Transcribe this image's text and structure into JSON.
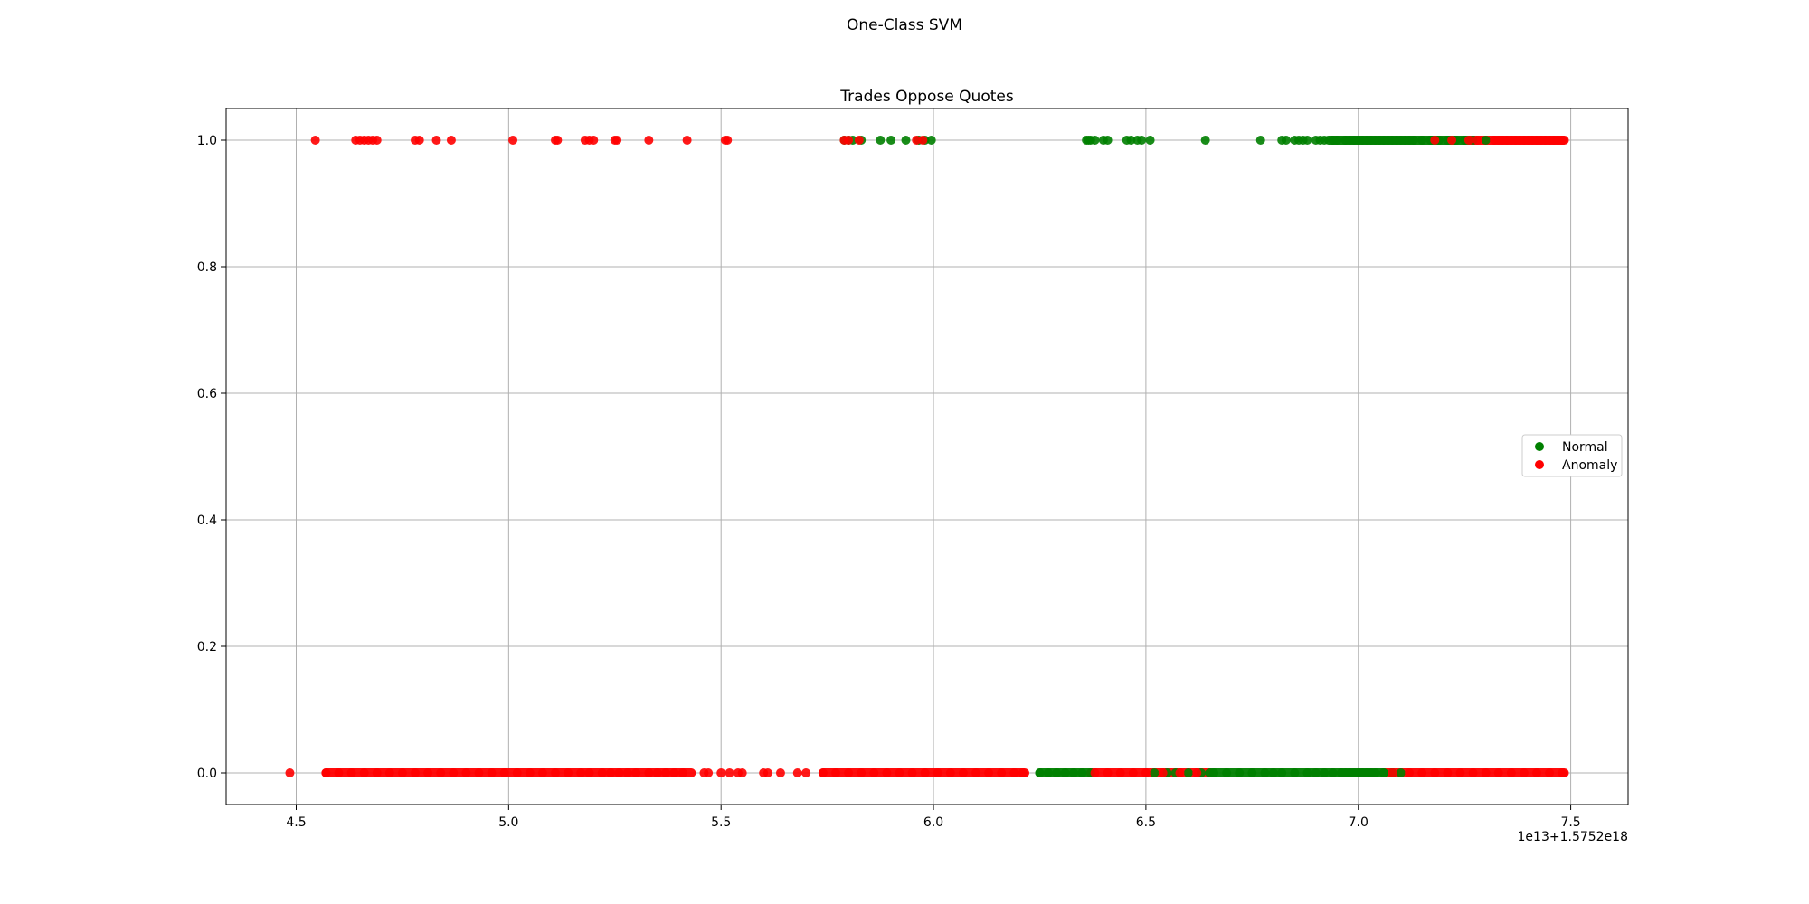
{
  "figure": {
    "suptitle": "One-Class SVM"
  },
  "chart_data": {
    "type": "scatter",
    "title": "Trades Oppose Quotes",
    "xlabel": "",
    "ylabel": "",
    "x_offset_label": "1e13+1.5752e18",
    "xlim": [
      4.335,
      7.635
    ],
    "ylim": [
      -0.05,
      1.05
    ],
    "x_ticks": [
      4.5,
      5.0,
      5.5,
      6.0,
      6.5,
      7.0,
      7.5
    ],
    "x_tick_labels": [
      "4.5",
      "5.0",
      "5.5",
      "6.0",
      "6.5",
      "7.0",
      "7.5"
    ],
    "y_ticks": [
      0.0,
      0.2,
      0.4,
      0.6,
      0.8,
      1.0
    ],
    "y_tick_labels": [
      "0.0",
      "0.2",
      "0.4",
      "0.6",
      "0.8",
      "1.0"
    ],
    "grid": true,
    "legend": {
      "placement": "center-right"
    },
    "series": [
      {
        "name": "Normal",
        "color": "#008000",
        "points": [
          [
            5.79,
            1
          ],
          [
            5.8,
            1
          ],
          [
            5.81,
            1
          ],
          [
            5.83,
            1
          ],
          [
            5.875,
            1
          ],
          [
            5.9,
            1
          ],
          [
            5.935,
            1
          ],
          [
            5.965,
            1
          ],
          [
            5.98,
            1
          ],
          [
            5.995,
            1
          ],
          [
            6.36,
            1
          ],
          [
            6.365,
            1
          ],
          [
            6.37,
            1
          ],
          [
            6.38,
            1
          ],
          [
            6.4,
            1
          ],
          [
            6.41,
            1
          ],
          [
            6.455,
            1
          ],
          [
            6.465,
            1
          ],
          [
            6.48,
            1
          ],
          [
            6.49,
            1
          ],
          [
            6.51,
            1
          ],
          [
            6.64,
            1
          ],
          [
            6.77,
            1
          ],
          [
            6.82,
            1
          ],
          [
            6.83,
            1
          ],
          [
            6.85,
            1
          ],
          [
            6.86,
            1
          ],
          [
            6.87,
            1
          ],
          [
            6.88,
            1
          ],
          [
            6.9,
            1
          ],
          [
            6.91,
            1
          ],
          [
            6.92,
            1
          ],
          [
            6.94,
            1
          ],
          [
            6.95,
            1
          ],
          [
            6.97,
            1
          ],
          [
            6.98,
            1
          ],
          [
            6.99,
            1
          ],
          [
            7.0,
            1
          ],
          [
            7.01,
            1
          ],
          [
            7.02,
            1
          ],
          [
            7.03,
            1
          ],
          [
            7.04,
            1
          ],
          [
            7.05,
            1
          ],
          [
            7.06,
            1
          ],
          [
            7.07,
            1
          ],
          [
            7.08,
            1
          ],
          [
            7.09,
            1
          ],
          [
            7.1,
            1
          ],
          [
            7.11,
            1
          ],
          [
            7.12,
            1
          ],
          [
            7.13,
            1
          ],
          [
            7.15,
            1
          ],
          [
            7.17,
            1
          ],
          [
            7.19,
            1
          ],
          [
            7.21,
            1
          ],
          [
            7.23,
            1
          ],
          [
            7.25,
            1
          ],
          [
            7.27,
            1
          ],
          [
            7.3,
            1
          ],
          [
            6.25,
            0
          ],
          [
            6.27,
            0
          ],
          [
            6.29,
            0
          ],
          [
            6.31,
            0
          ],
          [
            6.33,
            0
          ],
          [
            6.35,
            0
          ],
          [
            6.52,
            0
          ],
          [
            6.55,
            0
          ],
          [
            6.57,
            0
          ],
          [
            6.6,
            0
          ],
          [
            6.63,
            0
          ],
          [
            6.66,
            0
          ],
          [
            6.69,
            0
          ],
          [
            6.72,
            0
          ],
          [
            6.75,
            0
          ],
          [
            6.78,
            0
          ],
          [
            6.8,
            0
          ],
          [
            6.82,
            0
          ],
          [
            6.85,
            0
          ],
          [
            6.88,
            0
          ],
          [
            6.9,
            0
          ],
          [
            6.92,
            0
          ],
          [
            6.94,
            0
          ],
          [
            6.96,
            0
          ],
          [
            6.97,
            0
          ],
          [
            6.98,
            0
          ],
          [
            6.99,
            0
          ],
          [
            7.0,
            0
          ],
          [
            7.01,
            0
          ],
          [
            7.02,
            0
          ],
          [
            7.03,
            0
          ],
          [
            7.04,
            0
          ],
          [
            7.06,
            0
          ],
          [
            7.08,
            0
          ],
          [
            7.1,
            0
          ]
        ]
      },
      {
        "name": "Anomaly",
        "color": "#ff0000",
        "points": [
          [
            4.545,
            1
          ],
          [
            4.64,
            1
          ],
          [
            4.65,
            1
          ],
          [
            4.66,
            1
          ],
          [
            4.67,
            1
          ],
          [
            4.68,
            1
          ],
          [
            4.69,
            1
          ],
          [
            4.78,
            1
          ],
          [
            4.79,
            1
          ],
          [
            4.83,
            1
          ],
          [
            4.865,
            1
          ],
          [
            5.01,
            1
          ],
          [
            5.11,
            1
          ],
          [
            5.115,
            1
          ],
          [
            5.18,
            1
          ],
          [
            5.19,
            1
          ],
          [
            5.2,
            1
          ],
          [
            5.25,
            1
          ],
          [
            5.255,
            1
          ],
          [
            5.33,
            1
          ],
          [
            5.42,
            1
          ],
          [
            5.51,
            1
          ],
          [
            5.515,
            1
          ],
          [
            5.79,
            1
          ],
          [
            5.8,
            1
          ],
          [
            5.825,
            1
          ],
          [
            5.96,
            1
          ],
          [
            5.975,
            1
          ],
          [
            7.18,
            1
          ],
          [
            7.22,
            1
          ],
          [
            7.26,
            1
          ],
          [
            7.28,
            1
          ],
          [
            7.32,
            1
          ],
          [
            7.33,
            1
          ],
          [
            7.34,
            1
          ],
          [
            7.35,
            1
          ],
          [
            7.36,
            1
          ],
          [
            7.37,
            1
          ],
          [
            7.38,
            1
          ],
          [
            7.39,
            1
          ],
          [
            7.4,
            1
          ],
          [
            7.41,
            1
          ],
          [
            7.42,
            1
          ],
          [
            7.43,
            1
          ],
          [
            7.44,
            1
          ],
          [
            7.45,
            1
          ],
          [
            7.46,
            1
          ],
          [
            7.47,
            1
          ],
          [
            7.48,
            1
          ],
          [
            4.485,
            0
          ],
          [
            4.57,
            0
          ],
          [
            4.6,
            0
          ],
          [
            4.63,
            0
          ],
          [
            4.66,
            0
          ],
          [
            4.69,
            0
          ],
          [
            4.72,
            0
          ],
          [
            4.75,
            0
          ],
          [
            4.78,
            0
          ],
          [
            4.81,
            0
          ],
          [
            4.84,
            0
          ],
          [
            4.87,
            0
          ],
          [
            4.9,
            0
          ],
          [
            4.93,
            0
          ],
          [
            4.96,
            0
          ],
          [
            4.99,
            0
          ],
          [
            5.02,
            0
          ],
          [
            5.05,
            0
          ],
          [
            5.08,
            0
          ],
          [
            5.11,
            0
          ],
          [
            5.14,
            0
          ],
          [
            5.17,
            0
          ],
          [
            5.19,
            0
          ],
          [
            5.22,
            0
          ],
          [
            5.24,
            0
          ],
          [
            5.26,
            0
          ],
          [
            5.28,
            0
          ],
          [
            5.3,
            0
          ],
          [
            5.33,
            0
          ],
          [
            5.35,
            0
          ],
          [
            5.37,
            0
          ],
          [
            5.39,
            0
          ],
          [
            5.41,
            0
          ],
          [
            5.46,
            0
          ],
          [
            5.47,
            0
          ],
          [
            5.5,
            0
          ],
          [
            5.52,
            0
          ],
          [
            5.54,
            0
          ],
          [
            5.55,
            0
          ],
          [
            5.6,
            0
          ],
          [
            5.61,
            0
          ],
          [
            5.64,
            0
          ],
          [
            5.68,
            0
          ],
          [
            5.7,
            0
          ],
          [
            5.74,
            0
          ],
          [
            5.77,
            0
          ],
          [
            5.8,
            0
          ],
          [
            5.83,
            0
          ],
          [
            5.86,
            0
          ],
          [
            5.89,
            0
          ],
          [
            5.92,
            0
          ],
          [
            5.95,
            0
          ],
          [
            5.98,
            0
          ],
          [
            6.01,
            0
          ],
          [
            6.04,
            0
          ],
          [
            6.07,
            0
          ],
          [
            6.1,
            0
          ],
          [
            6.13,
            0
          ],
          [
            6.16,
            0
          ],
          [
            6.19,
            0
          ],
          [
            6.21,
            0
          ],
          [
            6.38,
            0
          ],
          [
            6.41,
            0
          ],
          [
            6.44,
            0
          ],
          [
            6.47,
            0
          ],
          [
            6.5,
            0
          ],
          [
            6.54,
            0
          ],
          [
            6.58,
            0
          ],
          [
            6.62,
            0
          ],
          [
            7.08,
            0
          ],
          [
            7.12,
            0
          ],
          [
            7.15,
            0
          ],
          [
            7.18,
            0
          ],
          [
            7.21,
            0
          ],
          [
            7.24,
            0
          ],
          [
            7.27,
            0
          ],
          [
            7.3,
            0
          ],
          [
            7.33,
            0
          ],
          [
            7.36,
            0
          ],
          [
            7.39,
            0
          ],
          [
            7.42,
            0
          ],
          [
            7.45,
            0
          ],
          [
            7.48,
            0
          ]
        ]
      }
    ],
    "dense_runs": [
      {
        "series": "Anomaly",
        "y": 0,
        "range": [
          4.57,
          5.43
        ]
      },
      {
        "series": "Anomaly",
        "y": 0,
        "range": [
          5.74,
          6.215
        ]
      },
      {
        "series": "Anomaly",
        "y": 0,
        "range": [
          6.37,
          6.65
        ]
      },
      {
        "series": "Anomaly",
        "y": 0,
        "range": [
          7.06,
          7.485
        ]
      },
      {
        "series": "Anomaly",
        "y": 1,
        "range": [
          7.26,
          7.485
        ]
      },
      {
        "series": "Normal",
        "y": 0,
        "range": [
          6.25,
          6.37
        ]
      },
      {
        "series": "Normal",
        "y": 0,
        "range": [
          6.65,
          7.06
        ]
      },
      {
        "series": "Normal",
        "y": 1,
        "range": [
          6.93,
          7.26
        ]
      }
    ]
  }
}
